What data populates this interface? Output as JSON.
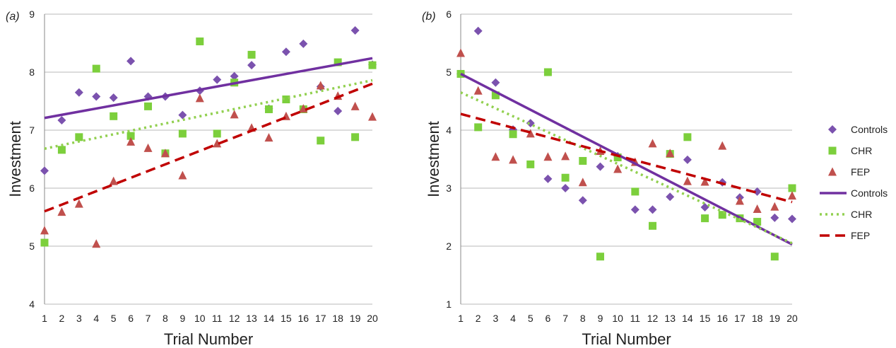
{
  "colors": {
    "controls": "#7b52ae",
    "chr": "#7ccf3c",
    "fep": "#c0504d",
    "controls_line": "#7030a0",
    "chr_line": "#92d050",
    "fep_line": "#c00000"
  },
  "legend": {
    "placement": "right",
    "entries": [
      {
        "label": "Controls",
        "kind": "marker",
        "series": "controls",
        "shape": "diamond"
      },
      {
        "label": "CHR",
        "kind": "marker",
        "series": "chr",
        "shape": "square"
      },
      {
        "label": "FEP",
        "kind": "marker",
        "series": "fep",
        "shape": "triangle"
      },
      {
        "label": "Controls",
        "kind": "line",
        "series": "controls",
        "dash": "solid"
      },
      {
        "label": "CHR",
        "kind": "line",
        "series": "chr",
        "dash": "dotted"
      },
      {
        "label": "FEP",
        "kind": "line",
        "series": "fep",
        "dash": "dashed"
      }
    ]
  },
  "chart_data": [
    {
      "type": "scatter",
      "panel_label": "(a)",
      "xlabel": "Trial Number",
      "ylabel": "Investment",
      "x": [
        1,
        2,
        3,
        4,
        5,
        6,
        7,
        8,
        9,
        10,
        11,
        12,
        13,
        14,
        15,
        16,
        17,
        18,
        19,
        20
      ],
      "xlim": [
        1,
        20
      ],
      "ylim": [
        4,
        9
      ],
      "yticks": [
        4,
        5,
        6,
        7,
        8,
        9
      ],
      "grid": true,
      "series": [
        {
          "name": "Controls",
          "key": "controls",
          "marker": "diamond",
          "values": [
            6.3,
            7.17,
            7.65,
            7.58,
            7.56,
            8.19,
            7.58,
            7.58,
            7.26,
            7.68,
            7.87,
            7.93,
            8.12,
            7.37,
            8.35,
            8.49,
            7.75,
            7.33,
            8.72,
            8.13
          ]
        },
        {
          "name": "CHR",
          "key": "chr",
          "marker": "square",
          "values": [
            5.06,
            6.66,
            6.88,
            8.06,
            7.24,
            6.9,
            7.41,
            6.6,
            6.94,
            8.53,
            6.94,
            7.82,
            8.3,
            7.36,
            7.53,
            7.36,
            6.82,
            8.17,
            6.88,
            8.12
          ]
        },
        {
          "name": "FEP",
          "key": "fep",
          "marker": "triangle",
          "values": [
            5.27,
            5.59,
            5.73,
            5.04,
            6.12,
            6.8,
            6.69,
            6.6,
            6.22,
            7.55,
            6.77,
            7.27,
            7.04,
            6.87,
            7.24,
            7.37,
            7.77,
            7.59,
            7.41,
            7.23
          ]
        }
      ],
      "trendlines": [
        {
          "name": "Controls",
          "key": "controls",
          "dash": "solid",
          "start": 7.21,
          "end": 8.24
        },
        {
          "name": "CHR",
          "key": "chr",
          "dash": "dotted",
          "start": 6.68,
          "end": 7.86
        },
        {
          "name": "FEP",
          "key": "fep",
          "dash": "dashed",
          "start": 5.6,
          "end": 7.8
        }
      ]
    },
    {
      "type": "scatter",
      "panel_label": "(b)",
      "xlabel": "Trial Number",
      "ylabel": "Investment",
      "x": [
        1,
        2,
        3,
        4,
        5,
        6,
        7,
        8,
        9,
        10,
        11,
        12,
        13,
        14,
        15,
        16,
        17,
        18,
        19,
        20
      ],
      "xlim": [
        1,
        20
      ],
      "ylim": [
        1,
        6
      ],
      "yticks": [
        1,
        2,
        3,
        4,
        5,
        6
      ],
      "grid": true,
      "series": [
        {
          "name": "Controls",
          "key": "controls",
          "marker": "diamond",
          "values": [
            4.97,
            5.71,
            4.82,
            4.01,
            4.12,
            3.16,
            3.0,
            2.79,
            3.37,
            3.55,
            2.63,
            2.63,
            2.85,
            3.49,
            2.67,
            3.1,
            2.84,
            2.94,
            2.49,
            2.47
          ]
        },
        {
          "name": "CHR",
          "key": "chr",
          "marker": "square",
          "values": [
            4.97,
            4.05,
            4.6,
            3.93,
            3.41,
            5.0,
            3.18,
            3.47,
            1.82,
            3.53,
            2.94,
            2.35,
            3.59,
            3.88,
            2.48,
            2.54,
            2.48,
            2.42,
            1.82,
            3.0
          ]
        },
        {
          "name": "FEP",
          "key": "fep",
          "marker": "triangle",
          "values": [
            5.33,
            4.68,
            3.54,
            3.49,
            3.94,
            3.54,
            3.55,
            3.1,
            3.64,
            3.33,
            3.45,
            3.77,
            3.6,
            3.12,
            3.11,
            3.73,
            2.78,
            2.64,
            2.68,
            2.87
          ]
        }
      ],
      "trendlines": [
        {
          "name": "Controls",
          "key": "controls",
          "dash": "solid",
          "start": 4.97,
          "end": 2.03
        },
        {
          "name": "CHR",
          "key": "chr",
          "dash": "dotted",
          "start": 4.65,
          "end": 2.05
        },
        {
          "name": "FEP",
          "key": "fep",
          "dash": "dashed",
          "start": 4.28,
          "end": 2.76
        }
      ]
    }
  ]
}
